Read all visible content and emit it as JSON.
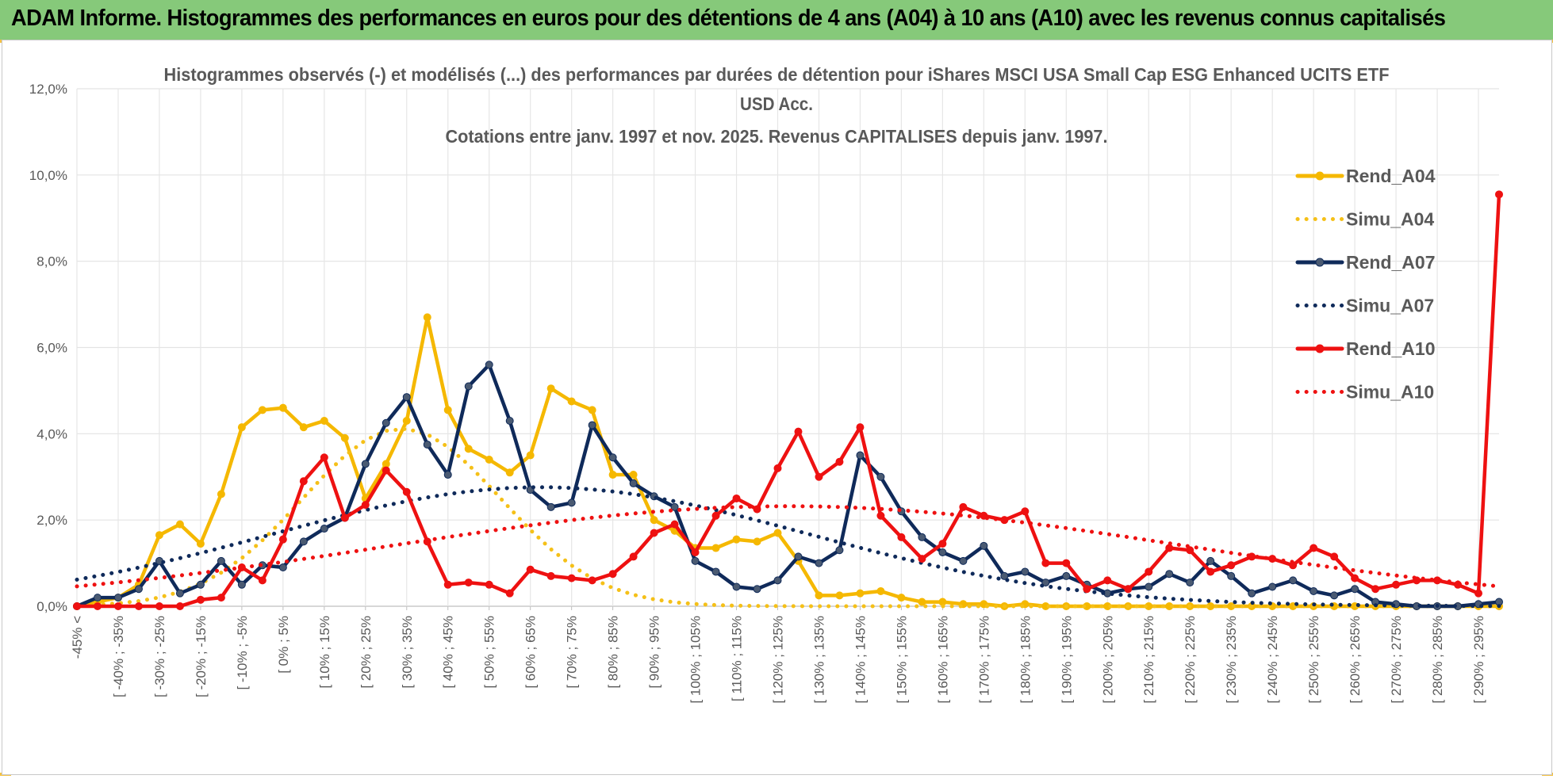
{
  "header": {
    "title": "ADAM Informe. Histogrammes des performances en euros pour des détentions de 4 ans (A04) à 10 ans (A10) avec les revenus connus capitalisés"
  },
  "chart_data": {
    "type": "line",
    "title_lines": [
      "Histogrammes observés (-) et modélisés (...) des performances par durées de détention pour iShares MSCI USA Small Cap ESG Enhanced UCITS ETF",
      "USD Acc.",
      "Cotations entre janv. 1997 et nov. 2025. Revenus CAPITALISES depuis janv. 1997."
    ],
    "ylim": [
      0,
      12
    ],
    "y_ticks": [
      "0,0%",
      "2,0%",
      "4,0%",
      "6,0%",
      "8,0%",
      "10,0%",
      "12,0%"
    ],
    "y_tick_values": [
      0,
      2,
      4,
      6,
      8,
      10,
      12
    ],
    "x_tick_labels": [
      "-45% <",
      "[ -40% ; -35%",
      "[ -30% ; -25%",
      "[ -20% ; -15%",
      "[ -10% ; -5%",
      "[ 0% ; 5%",
      "[ 10% ; 15%",
      "[ 20% ; 25%",
      "[ 30% ; 35%",
      "[ 40% ; 45%",
      "[ 50% ; 55%",
      "[ 60% ; 65%",
      "[ 70% ; 75%",
      "[ 80% ; 85%",
      "[ 90% ; 95%",
      "[ 100% ; 105%",
      "[ 110% ; 115%",
      "[ 120% ; 125%",
      "[ 130% ; 135%",
      "[ 140% ; 145%",
      "[ 150% ; 155%",
      "[ 160% ; 165%",
      "[ 170% ; 175%",
      "[ 180% ; 185%",
      "[ 190% ; 195%",
      "[ 200% ; 205%",
      "[ 210% ; 215%",
      "[ 220% ; 225%",
      "[ 230% ; 235%",
      "[ 240% ; 245%",
      "[ 250% ; 255%",
      "[ 260% ; 265%",
      "[ 270% ; 275%",
      "[ 280% ; 285%",
      "[ 290% ; 295%"
    ],
    "legend_position": "top-right",
    "series": [
      {
        "name": "Rend_A04",
        "style": "solid",
        "markers": true,
        "color": "#f5b800",
        "values": [
          0.0,
          0.1,
          0.2,
          0.5,
          1.65,
          1.9,
          1.45,
          2.6,
          4.15,
          4.55,
          4.6,
          4.15,
          4.3,
          3.9,
          2.5,
          3.3,
          4.3,
          6.7,
          4.55,
          3.65,
          3.4,
          3.1,
          3.5,
          5.05,
          4.75,
          4.55,
          3.05,
          3.05,
          2.0,
          1.75,
          1.35,
          1.35,
          1.55,
          1.5,
          1.7,
          1.05,
          0.25,
          0.25,
          0.3,
          0.35,
          0.2,
          0.1,
          0.1,
          0.05,
          0.05,
          0.0,
          0.05,
          0.0,
          0.0,
          0.0,
          0.0,
          0.0,
          0.0,
          0.0,
          0.0,
          0.0,
          0.0,
          0.0,
          0.0,
          0.0,
          0.0,
          0.0,
          0.0,
          0.0,
          0.0,
          0.0,
          0.0,
          0.0,
          0.0,
          0.0
        ]
      },
      {
        "name": "Simu_A04",
        "style": "dotted",
        "markers": false,
        "color": "#f5c018",
        "mu": 31.3,
        "sigma": 24.0,
        "peak": 4.12
      },
      {
        "name": "Rend_A07",
        "style": "solid",
        "markers": true,
        "color": "#0f2a5a",
        "values": [
          0.0,
          0.2,
          0.2,
          0.4,
          1.05,
          0.3,
          0.5,
          1.05,
          0.5,
          0.95,
          0.9,
          1.5,
          1.8,
          2.05,
          3.3,
          4.25,
          4.85,
          3.75,
          3.05,
          5.1,
          5.6,
          4.3,
          2.7,
          2.3,
          2.4,
          4.2,
          3.45,
          2.85,
          2.55,
          2.3,
          1.05,
          0.8,
          0.45,
          0.4,
          0.6,
          1.15,
          1.0,
          1.3,
          3.5,
          3.0,
          2.2,
          1.6,
          1.25,
          1.05,
          1.4,
          0.7,
          0.8,
          0.55,
          0.7,
          0.5,
          0.3,
          0.4,
          0.45,
          0.75,
          0.55,
          1.05,
          0.7,
          0.3,
          0.45,
          0.6,
          0.35,
          0.25,
          0.4,
          0.1,
          0.05,
          0.0,
          0.0,
          0.0,
          0.05,
          0.1
        ]
      },
      {
        "name": "Simu_A07",
        "style": "dotted",
        "markers": false,
        "color": "#0f2a5a",
        "mu": 65.0,
        "sigma": 65.0,
        "peak": 2.76
      },
      {
        "name": "Rend_A10",
        "style": "solid",
        "markers": true,
        "color": "#ee1111",
        "values": [
          0.0,
          0.0,
          0.0,
          0.0,
          0.0,
          0.0,
          0.15,
          0.2,
          0.9,
          0.6,
          1.55,
          2.9,
          3.45,
          2.05,
          2.35,
          3.15,
          2.65,
          1.5,
          0.5,
          0.55,
          0.5,
          0.3,
          0.85,
          0.7,
          0.65,
          0.6,
          0.75,
          1.15,
          1.7,
          1.9,
          1.25,
          2.1,
          2.5,
          2.25,
          3.2,
          4.05,
          3.0,
          3.35,
          4.15,
          2.1,
          1.6,
          1.1,
          1.45,
          2.3,
          2.1,
          2.0,
          2.2,
          1.0,
          1.0,
          0.4,
          0.6,
          0.4,
          0.8,
          1.35,
          1.3,
          0.8,
          0.95,
          1.15,
          1.1,
          0.95,
          1.35,
          1.15,
          0.65,
          0.4,
          0.5,
          0.6,
          0.6,
          0.5,
          0.3,
          9.55
        ]
      },
      {
        "name": "Simu_A10",
        "style": "dotted",
        "markers": false,
        "color": "#ee1111",
        "mu": 125.0,
        "sigma": 96.0,
        "peak": 2.32
      }
    ]
  }
}
